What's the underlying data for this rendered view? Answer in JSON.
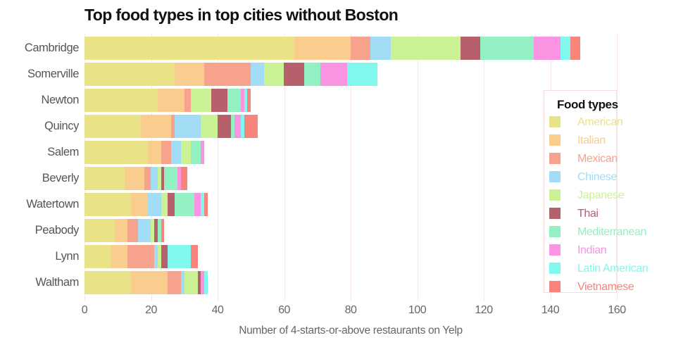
{
  "title": "Top food types in top cities without Boston",
  "x_axis": {
    "label": "Number of 4-starts-or-above restaurants on Yelp",
    "ticks": [
      0,
      20,
      40,
      60,
      80,
      100,
      120,
      140,
      160
    ]
  },
  "legend": {
    "title": "Food types"
  },
  "styles": {
    "grid_color": "#f9e8e8",
    "axis_text_color": "#666666",
    "category_label_color": "#555555",
    "title_color": "#111111",
    "legend_border_color": "#f8dcdc",
    "background": "#ffffff"
  },
  "chart_data": {
    "type": "bar",
    "stacked": true,
    "orientation": "horizontal",
    "title": "Top food types in top cities without Boston",
    "xlabel": "Number of 4-starts-or-above restaurants on Yelp",
    "ylabel": "",
    "xlim": [
      0,
      160
    ],
    "xticks": [
      0,
      20,
      40,
      60,
      80,
      100,
      120,
      140,
      160
    ],
    "grid": true,
    "legend_title": "Food types",
    "legend_position": "right-inside",
    "categories": [
      "Cambridge",
      "Somerville",
      "Newton",
      "Quincy",
      "Salem",
      "Beverly",
      "Watertown",
      "Peabody",
      "Lynn",
      "Waltham"
    ],
    "series": [
      {
        "name": "American",
        "color": "#e8e387",
        "values": [
          63,
          27,
          22,
          17,
          19,
          12,
          14,
          9,
          8,
          14
        ]
      },
      {
        "name": "Italian",
        "color": "#f8cd8e",
        "values": [
          17,
          9,
          8,
          9,
          4,
          6,
          5,
          4,
          5,
          11
        ]
      },
      {
        "name": "Mexican",
        "color": "#f7a28c",
        "values": [
          6,
          14,
          2,
          1,
          3,
          2,
          0,
          3,
          8,
          4
        ]
      },
      {
        "name": "Chinese",
        "color": "#a2dcf5",
        "values": [
          6,
          4,
          0,
          8,
          3,
          2,
          4,
          4,
          1,
          1
        ]
      },
      {
        "name": "Japanese",
        "color": "#caf295",
        "values": [
          21,
          6,
          6,
          5,
          3,
          1,
          2,
          1,
          1,
          4
        ]
      },
      {
        "name": "Thai",
        "color": "#b5606b",
        "values": [
          6,
          6,
          5,
          4,
          0,
          1,
          2,
          1,
          2,
          1
        ]
      },
      {
        "name": "Mediterranean",
        "color": "#93f0c3",
        "values": [
          16,
          5,
          4,
          1,
          3,
          4,
          6,
          1,
          0,
          0
        ]
      },
      {
        "name": "Indian",
        "color": "#fb93e3",
        "values": [
          8,
          8,
          1,
          2,
          1,
          1,
          2,
          0,
          0,
          1
        ]
      },
      {
        "name": "Latin American",
        "color": "#80f8ee",
        "values": [
          3,
          9,
          1,
          1,
          0,
          0,
          1,
          0,
          7,
          1
        ]
      },
      {
        "name": "Vietnamese",
        "color": "#f8847b",
        "values": [
          3,
          0,
          1,
          4,
          0,
          2,
          1,
          1,
          2,
          0
        ]
      }
    ]
  }
}
